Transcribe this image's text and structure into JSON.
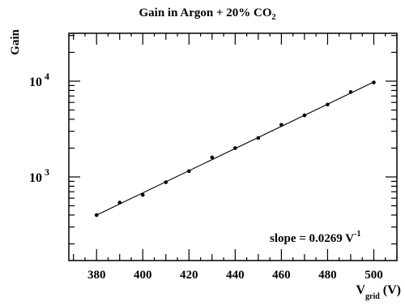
{
  "chart_data": {
    "type": "scatter",
    "title_main": "Gain in Argon + 20% CO",
    "title_sub": "2",
    "ylabel": "Gain",
    "xlabel_main": "V",
    "xlabel_sub": "grid",
    "xlabel_unit": "(V)",
    "xlim": [
      368,
      510
    ],
    "ylim": [
      134,
      31623
    ],
    "yscale": "log",
    "x_ticks": [
      380,
      400,
      420,
      440,
      460,
      480,
      500
    ],
    "y_tick_labels": [
      {
        "value": 1000,
        "base": "10",
        "exp": "3"
      },
      {
        "value": 10000,
        "base": "10",
        "exp": "4"
      }
    ],
    "points": {
      "x": [
        380,
        390,
        400,
        410,
        420,
        430,
        440,
        450,
        460,
        470,
        480,
        490,
        500
      ],
      "y": [
        400,
        540,
        650,
        880,
        1150,
        1600,
        2000,
        2550,
        3500,
        4400,
        5700,
        7700,
        9700
      ]
    },
    "fit_line": {
      "x": [
        380,
        500
      ],
      "y": [
        400,
        9800
      ]
    },
    "annotation_main": "slope = 0.0269 V",
    "annotation_sup": "-1",
    "grid": false,
    "colors": {
      "marker": "#000000",
      "line": "#000000",
      "axis": "#000000"
    }
  }
}
